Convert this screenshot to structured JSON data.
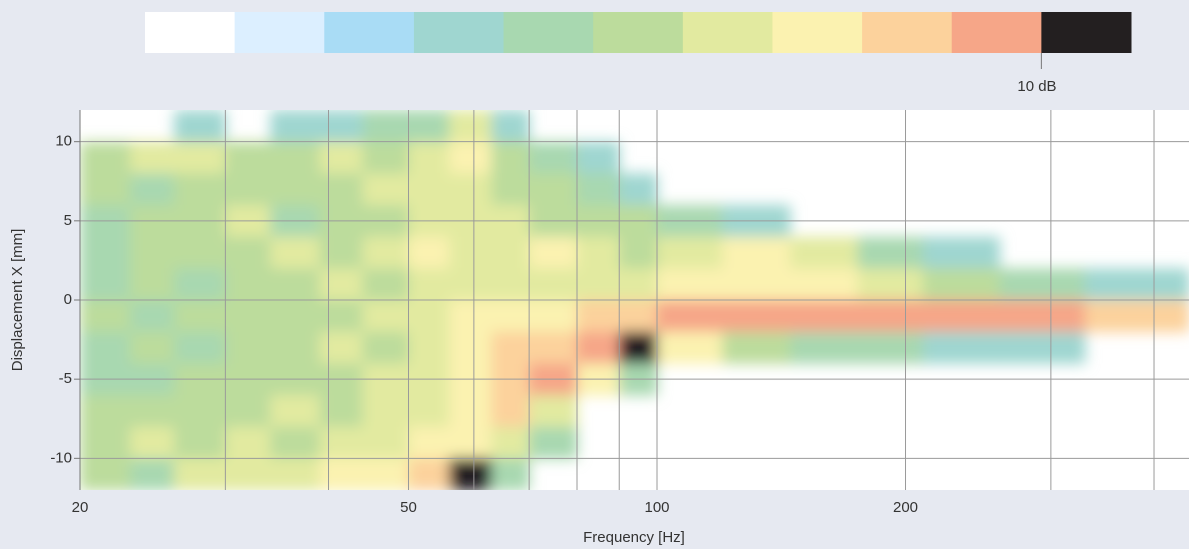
{
  "chart_data": {
    "type": "heatmap",
    "xlabel": "Frequency [Hz]",
    "ylabel": "Displacement X [mm]",
    "xscale": "log",
    "xlim": [
      20,
      441
    ],
    "ylim": [
      -12,
      12
    ],
    "xticks": [
      20,
      50,
      100,
      200
    ],
    "xminor": [
      30,
      40,
      60,
      70,
      80,
      90,
      300,
      400
    ],
    "yticks": [
      -10,
      -5,
      0,
      5,
      10
    ],
    "grid": true,
    "colorbar": {
      "lim": [
        0,
        10
      ],
      "ticks": [
        {
          "value": 10,
          "label": "10 dB"
        }
      ],
      "colors": [
        "#ffffff",
        "#dcefff",
        "#a9dcf5",
        "#9fd6d0",
        "#a8d8b0",
        "#bcdc9c",
        "#e2eaa0",
        "#fbf2b0",
        "#fcd29c",
        "#f6a688",
        "#231f20"
      ]
    },
    "x_bins": [
      20,
      23,
      26,
      30,
      34,
      39,
      44,
      50,
      56,
      63,
      70,
      80,
      90,
      100,
      120,
      145,
      175,
      210,
      260,
      330,
      441
    ],
    "y_bins": [
      12,
      10,
      8,
      6,
      4,
      2,
      0,
      -2,
      -4,
      -6,
      -8,
      -10,
      -12
    ],
    "z": [
      [
        null,
        null,
        3,
        null,
        3,
        3,
        4,
        4,
        6,
        3,
        null,
        null,
        null,
        null,
        null,
        null,
        null,
        null,
        null,
        null
      ],
      [
        5,
        6,
        6,
        5,
        5,
        6,
        5,
        6,
        7,
        5,
        4,
        3,
        null,
        null,
        null,
        null,
        null,
        null,
        null,
        null
      ],
      [
        5,
        4,
        5,
        5,
        5,
        5,
        6,
        6,
        6,
        5,
        5,
        4,
        3,
        null,
        null,
        null,
        null,
        null,
        null,
        null
      ],
      [
        4,
        5,
        5,
        6,
        4,
        5,
        5,
        6,
        6,
        6,
        5,
        5,
        5,
        4,
        3,
        null,
        null,
        null,
        null,
        null
      ],
      [
        4,
        5,
        5,
        5,
        6,
        5,
        6,
        7,
        6,
        6,
        7,
        6,
        5,
        6,
        7,
        6,
        4,
        3,
        null,
        null
      ],
      [
        4,
        5,
        4,
        5,
        5,
        6,
        5,
        6,
        6,
        6,
        6,
        6,
        6,
        7,
        7,
        7,
        6,
        5,
        4,
        3
      ],
      [
        5,
        4,
        5,
        5,
        5,
        5,
        6,
        6,
        7,
        7,
        7,
        8,
        8,
        9,
        9,
        9,
        9,
        9,
        9,
        8
      ],
      [
        4,
        5,
        4,
        5,
        5,
        6,
        5,
        6,
        7,
        8,
        8,
        9,
        10,
        7,
        5,
        4,
        4,
        3,
        3,
        null
      ],
      [
        4,
        4,
        5,
        5,
        5,
        5,
        6,
        6,
        7,
        8,
        9,
        7,
        4,
        null,
        null,
        null,
        null,
        null,
        null,
        null
      ],
      [
        5,
        5,
        5,
        5,
        6,
        5,
        6,
        6,
        7,
        8,
        6,
        null,
        null,
        null,
        null,
        null,
        null,
        null,
        null,
        null
      ],
      [
        5,
        6,
        5,
        6,
        5,
        6,
        6,
        7,
        7,
        6,
        4,
        null,
        null,
        null,
        null,
        null,
        null,
        null,
        null,
        null
      ],
      [
        5,
        4,
        6,
        6,
        6,
        7,
        7,
        8,
        10,
        4,
        null,
        null,
        null,
        null,
        null,
        null,
        null,
        null,
        null,
        null
      ]
    ]
  }
}
